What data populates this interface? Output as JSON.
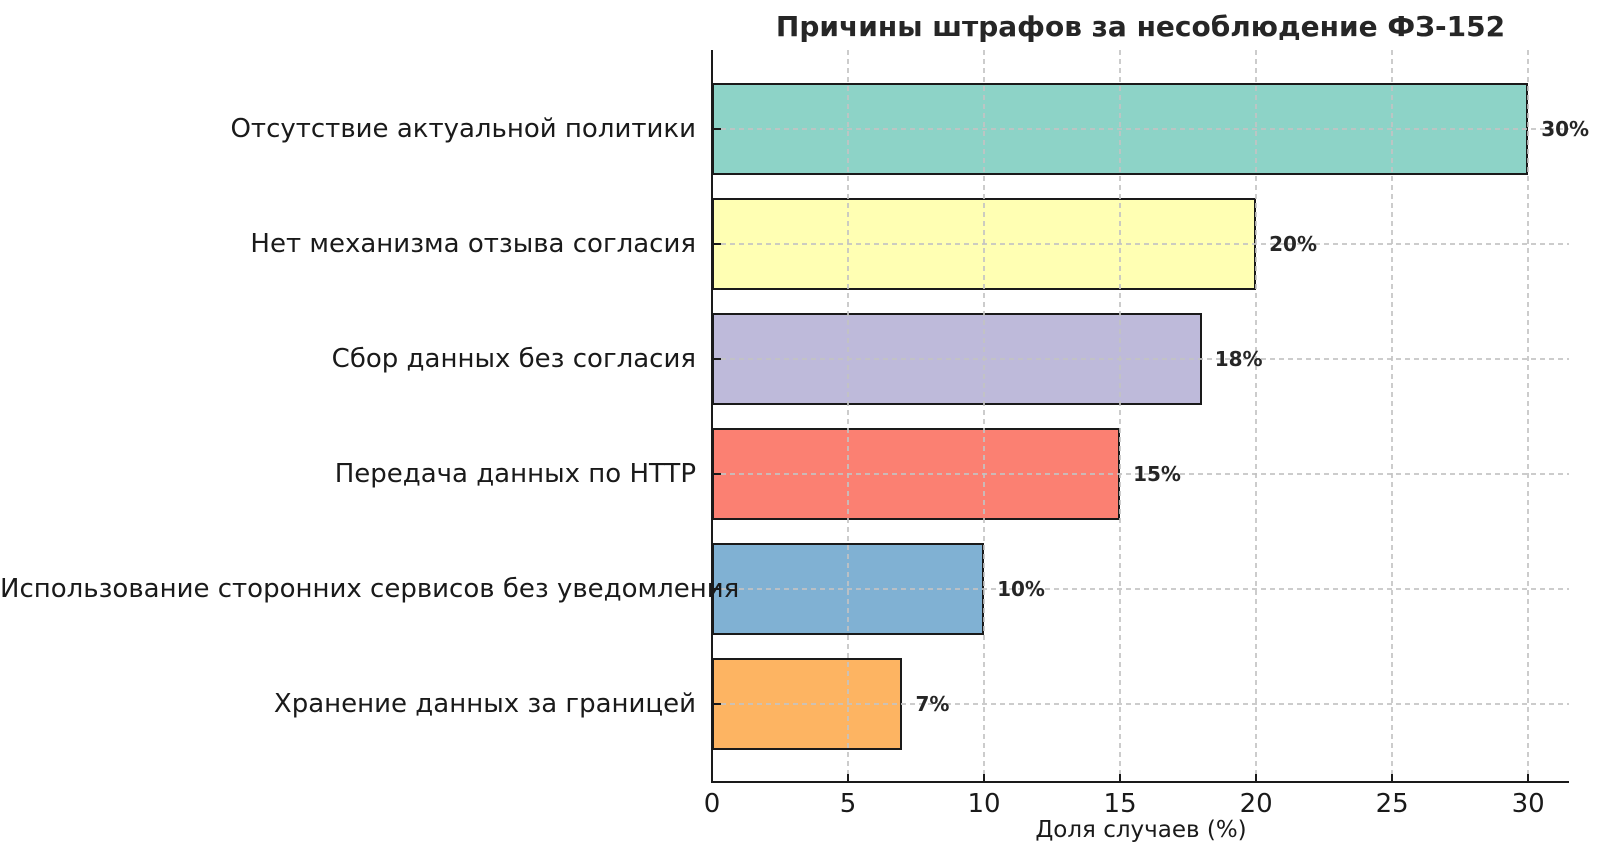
{
  "chart_data": {
    "type": "bar",
    "orientation": "horizontal",
    "title": "Причины штрафов за несоблюдение ФЗ-152",
    "xlabel": "Доля случаев (%)",
    "ylabel": "",
    "categories": [
      "Отсутствие актуальной политики",
      "Нет механизма отзыва согласия",
      "Сбор данных без согласия",
      "Передача данных по HTTP",
      "Использование сторонних сервисов без уведомления",
      "Хранение данных за границей"
    ],
    "values": [
      30,
      20,
      18,
      15,
      10,
      7
    ],
    "value_labels": [
      "30%",
      "20%",
      "18%",
      "15%",
      "10%",
      "7%"
    ],
    "bar_colors": [
      "#8dd3c7",
      "#ffffb3",
      "#bebada",
      "#fb8072",
      "#80b1d3",
      "#fdb462"
    ],
    "bar_edge_color": "#1a1a1a",
    "x_ticks": [
      "0",
      "5",
      "10",
      "15",
      "20",
      "25",
      "30"
    ],
    "x_tick_values": [
      0,
      5,
      10,
      15,
      20,
      25,
      30
    ],
    "xlim": [
      0,
      31.5
    ],
    "grid": {
      "style": "dashed",
      "color": "#c3c3c3",
      "axes": "both",
      "drawn_above_bars": true
    },
    "legend": "none",
    "background_color": "#ffffff",
    "text_color": "#1a1a1a"
  }
}
